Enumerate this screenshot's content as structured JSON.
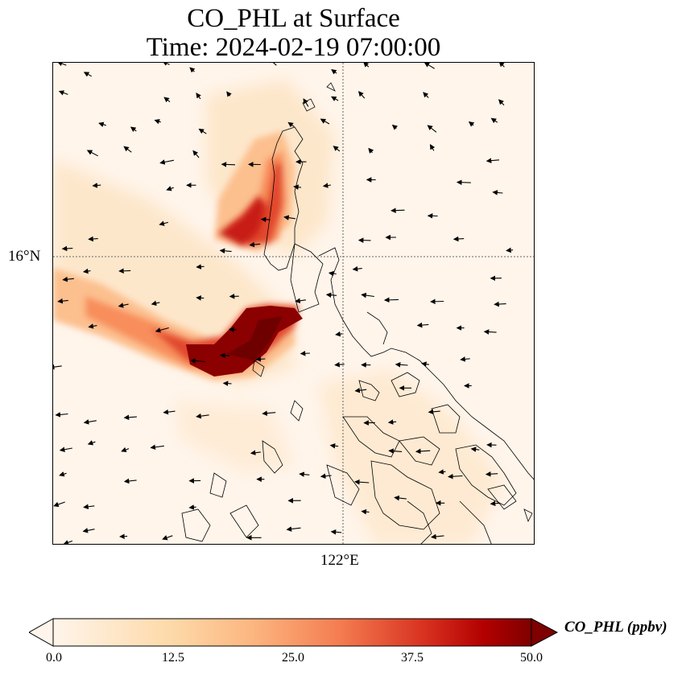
{
  "title": {
    "line1": "CO_PHL at Surface",
    "line2": "Time: 2024-02-19 07:00:00"
  },
  "map": {
    "lat_gridline_label": "16°N",
    "lon_gridline_label": "122°E",
    "field_colormap": "OrRd",
    "wind_vectors": "shown",
    "coastlines": "shown"
  },
  "colorbar": {
    "label": "CO_PHL (ppbv)",
    "min": 0.0,
    "max": 50.0,
    "extend": "both",
    "ticks": [
      "0.0",
      "12.5",
      "25.0",
      "37.5",
      "50.0"
    ],
    "colors": [
      "#fff5eb",
      "#fdd9a8",
      "#fcb57f",
      "#f47c50",
      "#d7301f",
      "#b30000",
      "#7f0000"
    ]
  }
}
